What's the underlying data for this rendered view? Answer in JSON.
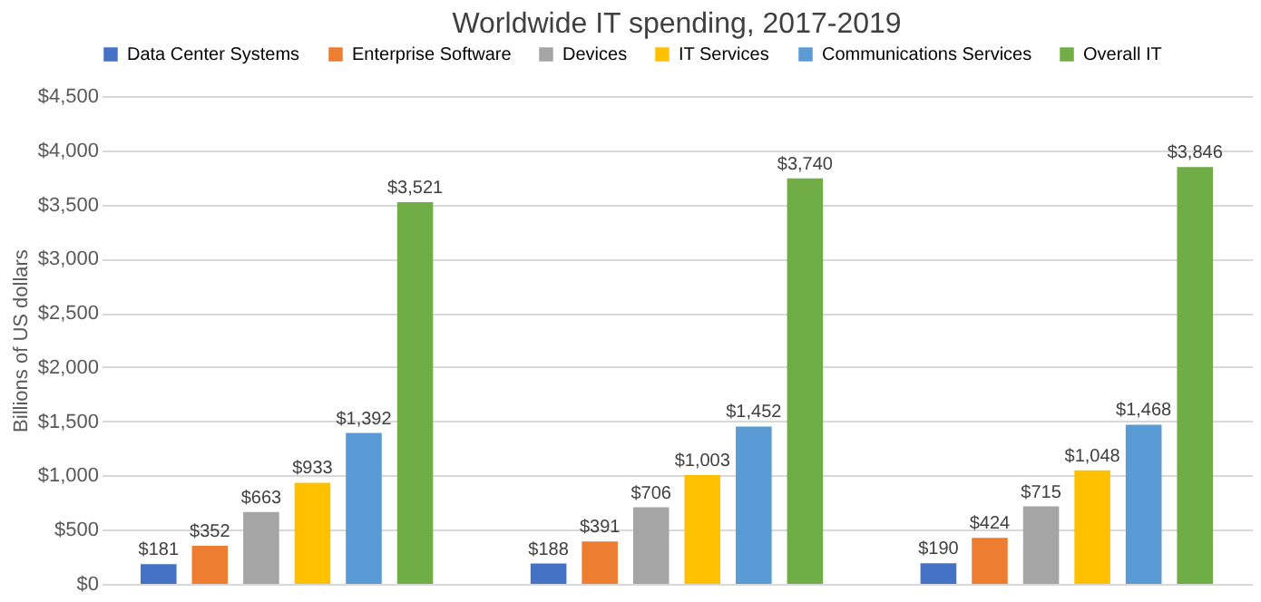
{
  "chart_data": {
    "type": "bar",
    "title": "Worldwide IT spending, 2017-2019",
    "ylabel": "Billions of US dollars",
    "categories": [
      null,
      null,
      null
    ],
    "series": [
      {
        "name": "Data Center Systems",
        "color": "#4472c4",
        "values": [
          181,
          188,
          190
        ],
        "value_labels": [
          "$181",
          "$188",
          "$190"
        ]
      },
      {
        "name": "Enterprise Software",
        "color": "#ed7d31",
        "values": [
          352,
          391,
          424
        ],
        "value_labels": [
          "$352",
          "$391",
          "$424"
        ]
      },
      {
        "name": "Devices",
        "color": "#a5a5a5",
        "values": [
          663,
          706,
          715
        ],
        "value_labels": [
          "$663",
          "$706",
          "$715"
        ]
      },
      {
        "name": "IT Services",
        "color": "#ffc000",
        "values": [
          933,
          1003,
          1048
        ],
        "value_labels": [
          "$933",
          "$1,003",
          "$1,048"
        ]
      },
      {
        "name": "Communications Services",
        "color": "#5b9bd5",
        "values": [
          1392,
          1452,
          1468
        ],
        "value_labels": [
          "$1,392",
          "$1,452",
          "$1,468"
        ]
      },
      {
        "name": "Overall IT",
        "color": "#70ad47",
        "values": [
          3521,
          3740,
          3846
        ],
        "value_labels": [
          "$3,521",
          "$3,740",
          "$3,846"
        ]
      }
    ],
    "ylim": [
      0,
      4500
    ],
    "yticks": [
      {
        "value": 0,
        "label": "$0"
      },
      {
        "value": 500,
        "label": "$500"
      },
      {
        "value": 1000,
        "label": "$1,000"
      },
      {
        "value": 1500,
        "label": "$1,500"
      },
      {
        "value": 2000,
        "label": "$2,000"
      },
      {
        "value": 2500,
        "label": "$2,500"
      },
      {
        "value": 3000,
        "label": "$3,000"
      },
      {
        "value": 3500,
        "label": "$3,500"
      },
      {
        "value": 4000,
        "label": "$4,000"
      },
      {
        "value": 4500,
        "label": "$4,500"
      }
    ],
    "grid": "y",
    "legend": "top",
    "tick_labels": "y"
  }
}
